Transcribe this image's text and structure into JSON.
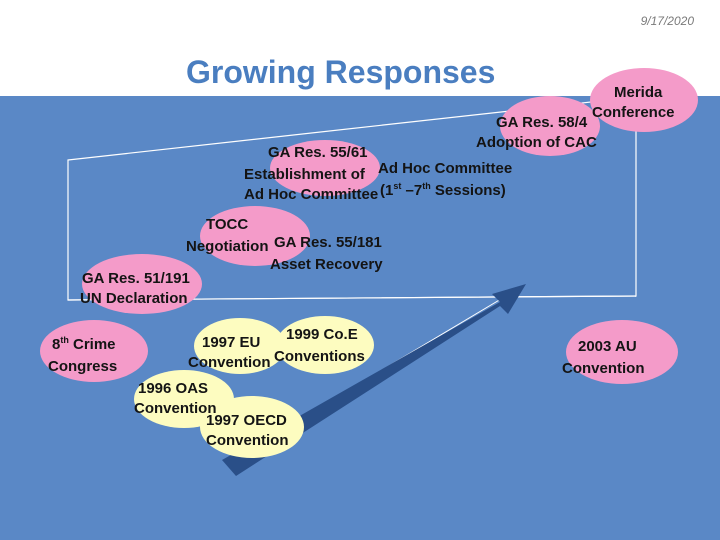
{
  "slide": {
    "date": "9/17/2020",
    "title": "Growing Responses"
  },
  "colors": {
    "background_blue": "#5a88c6",
    "title_blue": "#4a7ec0",
    "pink_bubble": "#f49bc9",
    "yellow_bubble": "#fdfcc0",
    "arrow": "#2a4f88"
  },
  "labels": {
    "merida_line1": "Merida",
    "merida_line2": "Conference",
    "ga584_line1": "GA Res. 58/4",
    "ga584_line2": "Adoption of CAC",
    "ga5561_line1": "GA Res. 55/61",
    "ga5561_line2": "Establishment of",
    "ga5561_line3": "Ad Hoc Committee",
    "adhoc_line1": "Ad Hoc Committee",
    "adhoc_line2_a": "(1",
    "adhoc_line2_sup1": "st",
    "adhoc_line2_b": " –7",
    "adhoc_line2_sup2": "th",
    "adhoc_line2_c": " Sessions)",
    "tocc_line1": "TOCC",
    "tocc_line2": "Negotiation",
    "ga55181_line1": "GA Res. 55/181",
    "ga55181_line2": "Asset Recovery",
    "ga51191_line1": "GA Res. 51/191",
    "ga51191_line2": "UN Declaration",
    "crime_line1_num": "8",
    "crime_line1_sup": "th",
    "crime_line1_rest": " Crime",
    "crime_line2": "Congress",
    "eu_line1": "1997 EU",
    "eu_line2": "Convention",
    "coe_line1": "1999 Co.E",
    "coe_line2": "Conventions",
    "oas_line1": "1996 OAS",
    "oas_line2": "Convention",
    "oecd_line1": "1997 OECD",
    "oecd_line2": "Convention",
    "au_line1": "2003 AU",
    "au_line2": "Convention"
  }
}
